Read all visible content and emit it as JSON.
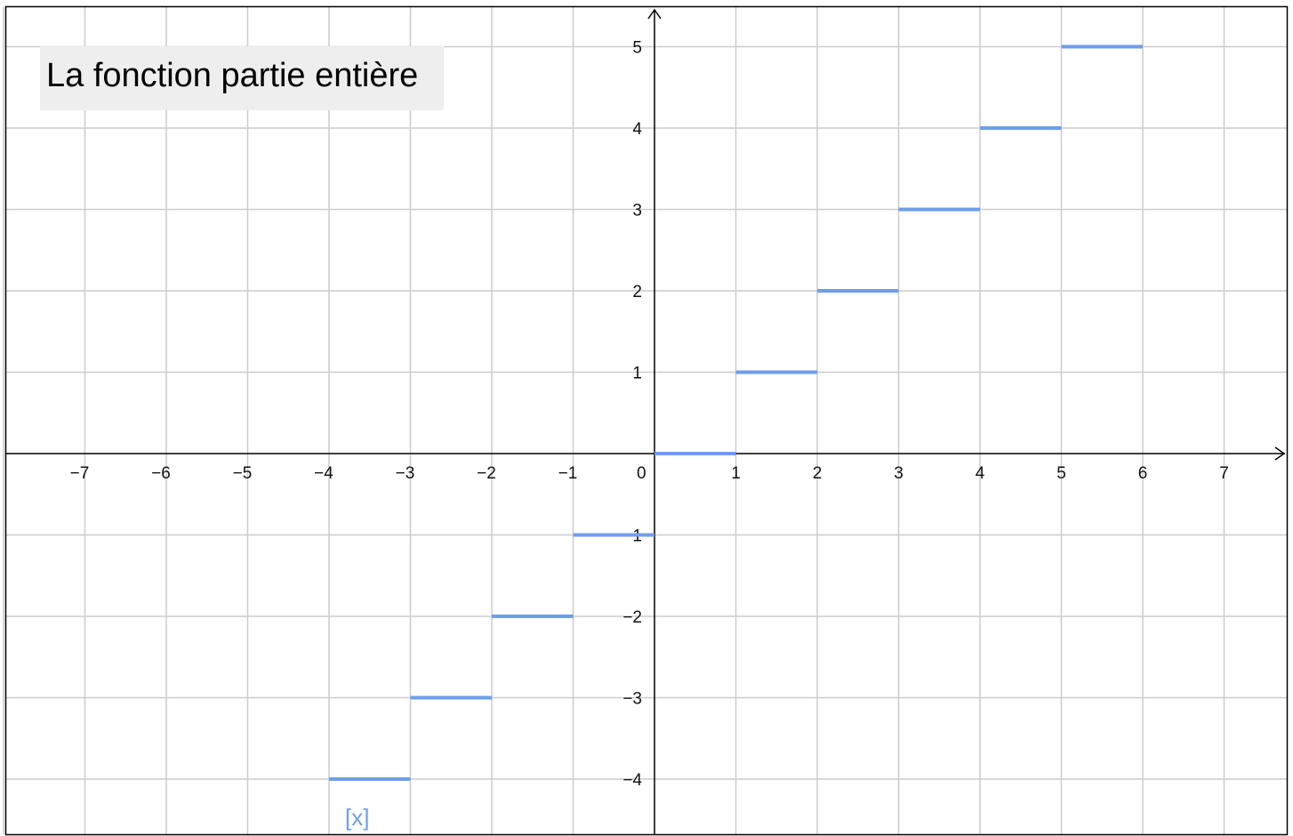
{
  "title": "La fonction partie entière",
  "function_label": "[x]",
  "chart_data": {
    "type": "line",
    "title": "La fonction partie entière",
    "xlabel": "",
    "ylabel": "",
    "xlim": [
      -8,
      7.7
    ],
    "ylim": [
      -4.7,
      5.5
    ],
    "grid": true,
    "x_ticks": [
      "−7",
      "−6",
      "−5",
      "−4",
      "−3",
      "−2",
      "−1",
      "0",
      "1",
      "2",
      "3",
      "4",
      "5",
      "6",
      "7"
    ],
    "y_ticks": [
      "−4",
      "−3",
      "−2",
      "−1",
      "1",
      "2",
      "3",
      "4",
      "5"
    ],
    "series": [
      {
        "name": "[x]",
        "color": "#6d9eeb",
        "segments": [
          {
            "x": [
              -4,
              -3
            ],
            "y": -4
          },
          {
            "x": [
              -3,
              -2
            ],
            "y": -3
          },
          {
            "x": [
              -2,
              -1
            ],
            "y": -2
          },
          {
            "x": [
              -1,
              0
            ],
            "y": -1
          },
          {
            "x": [
              0,
              1
            ],
            "y": 0
          },
          {
            "x": [
              1,
              2
            ],
            "y": 1
          },
          {
            "x": [
              2,
              3
            ],
            "y": 2
          },
          {
            "x": [
              3,
              4
            ],
            "y": 3
          },
          {
            "x": [
              4,
              5
            ],
            "y": 4
          },
          {
            "x": [
              5,
              6
            ],
            "y": 5
          }
        ]
      }
    ]
  },
  "colors": {
    "grid": "#cccccc",
    "axis": "#000000",
    "series": "#6d9eeb",
    "title_bg": "#eeeeee"
  }
}
